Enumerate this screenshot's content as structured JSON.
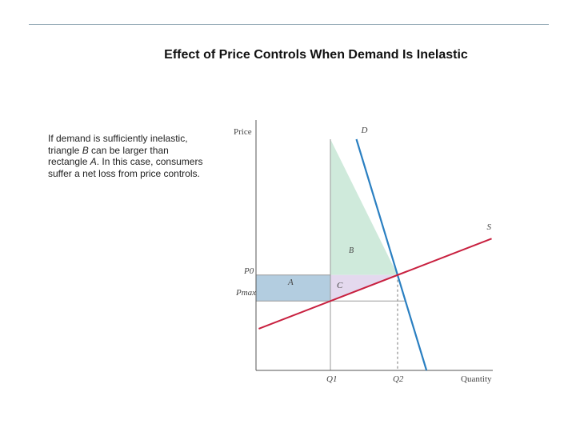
{
  "slide": {
    "title": "Effect of Price Controls When Demand Is Inelastic",
    "caption_parts": [
      "If demand is sufficiently inelastic, triangle ",
      "B",
      " can be larger than rectangle ",
      "A",
      ". In this case, consumers suffer a net loss from price controls."
    ]
  },
  "colors": {
    "demand": "#2a7fc1",
    "supply": "#c8203f",
    "triangle_b": "#cfeadb",
    "rectangle_a": "#b3cde0",
    "triangle_c": "#e4d9ee"
  },
  "chart_data": {
    "type": "line",
    "title": "",
    "xlabel": "Quantity",
    "ylabel": "Price",
    "x_ticks": [
      "Q1",
      "Q2"
    ],
    "y_ticks": [
      "P0",
      "Pmax"
    ],
    "series": [
      {
        "name": "D",
        "points": [
          [
            1.0,
            10.0
          ],
          [
            3.8,
            0.0
          ]
        ]
      },
      {
        "name": "S",
        "points": [
          [
            -2.9,
            1.8
          ],
          [
            6.4,
            5.7
          ]
        ]
      }
    ],
    "price_control": 3.0,
    "region_labels": [
      "A",
      "B",
      "C"
    ],
    "xlim": [
      -3.0,
      6.5
    ],
    "ylim": [
      0,
      10.6
    ],
    "grid": false
  }
}
